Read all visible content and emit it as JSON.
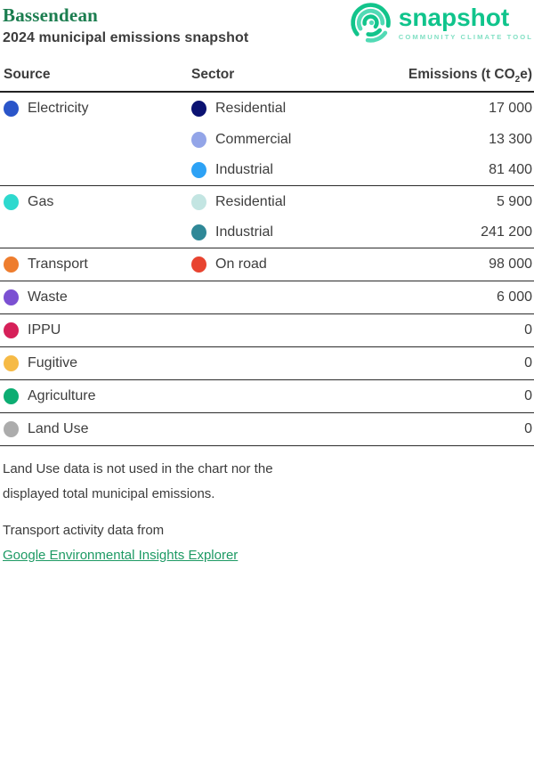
{
  "header": {
    "municipality": "Bassendean",
    "subtitle": "2024 municipal emissions snapshot",
    "logo": {
      "wordmark": "snapshot",
      "tagline": "COMMUNITY CLIMATE TOOL",
      "brand_green": "#10c48c",
      "brand_teal": "#52dab5",
      "tagline_green": "#82e0c4"
    }
  },
  "table": {
    "columns": {
      "source": "Source",
      "sector": "Sector",
      "emissions_pre": "Emissions (t CO",
      "emissions_sub": "2",
      "emissions_post": "e)"
    },
    "rows": [
      {
        "source": "Electricity",
        "color": "#2a55c9",
        "entries": [
          {
            "sector": "Residential",
            "color": "#0b1272",
            "value": "17 000"
          },
          {
            "sector": "Commercial",
            "color": "#93a5e8",
            "value": "13 300"
          },
          {
            "sector": "Industrial",
            "color": "#2da2f5",
            "value": "81 400"
          }
        ]
      },
      {
        "source": "Gas",
        "color": "#2ed9ce",
        "entries": [
          {
            "sector": "Residential",
            "color": "#c3e5e2",
            "value": "5 900"
          },
          {
            "sector": "Industrial",
            "color": "#2f8897",
            "value": "241 200"
          }
        ]
      },
      {
        "source": "Transport",
        "color": "#ee7d2e",
        "entries": [
          {
            "sector": "On road",
            "color": "#e84430",
            "value": "98 000"
          }
        ]
      },
      {
        "source": "Waste",
        "color": "#7b50d2",
        "entries": [
          {
            "sector": null,
            "color": null,
            "value": "6 000"
          }
        ]
      },
      {
        "source": "IPPU",
        "color": "#d62059",
        "entries": [
          {
            "sector": null,
            "color": null,
            "value": "0"
          }
        ]
      },
      {
        "source": "Fugitive",
        "color": "#f6ba45",
        "entries": [
          {
            "sector": null,
            "color": null,
            "value": "0"
          }
        ]
      },
      {
        "source": "Agriculture",
        "color": "#0cad72",
        "entries": [
          {
            "sector": null,
            "color": null,
            "value": "0"
          }
        ]
      },
      {
        "source": "Land Use",
        "color": "#acacac",
        "entries": [
          {
            "sector": null,
            "color": null,
            "value": "0"
          }
        ]
      }
    ]
  },
  "footnotes": {
    "land_use_note_line1": "Land Use data is not used in the chart nor the",
    "land_use_note_line2": "displayed total municipal emissions.",
    "transport_note": "Transport activity data from",
    "transport_link_label": "Google Environmental Insights Explorer"
  }
}
